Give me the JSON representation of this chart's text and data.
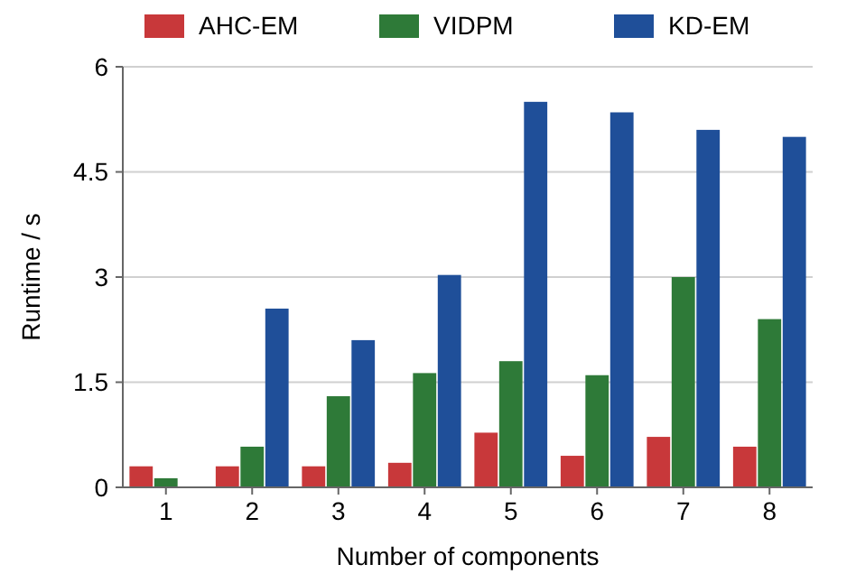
{
  "chart_data": {
    "type": "bar",
    "xlabel": "Number of components",
    "ylabel": "Runtime / s",
    "categories": [
      "1",
      "2",
      "3",
      "4",
      "5",
      "6",
      "7",
      "8"
    ],
    "series": [
      {
        "name": "AHC-EM",
        "color": "#c8383a",
        "values": [
          0.3,
          0.3,
          0.3,
          0.35,
          0.78,
          0.45,
          0.72,
          0.58
        ]
      },
      {
        "name": "VIDPM",
        "color": "#2e7a38",
        "values": [
          0.13,
          0.58,
          1.3,
          1.63,
          1.8,
          1.6,
          3.0,
          2.4
        ]
      },
      {
        "name": "KD-EM",
        "color": "#1f4f99",
        "values": [
          null,
          2.55,
          2.1,
          3.03,
          5.5,
          5.35,
          5.1,
          5.0
        ]
      }
    ],
    "ylim": [
      0,
      6
    ],
    "yticks": [
      0,
      1.5,
      3,
      4.5,
      6
    ],
    "grid": "y",
    "legend": "top"
  }
}
